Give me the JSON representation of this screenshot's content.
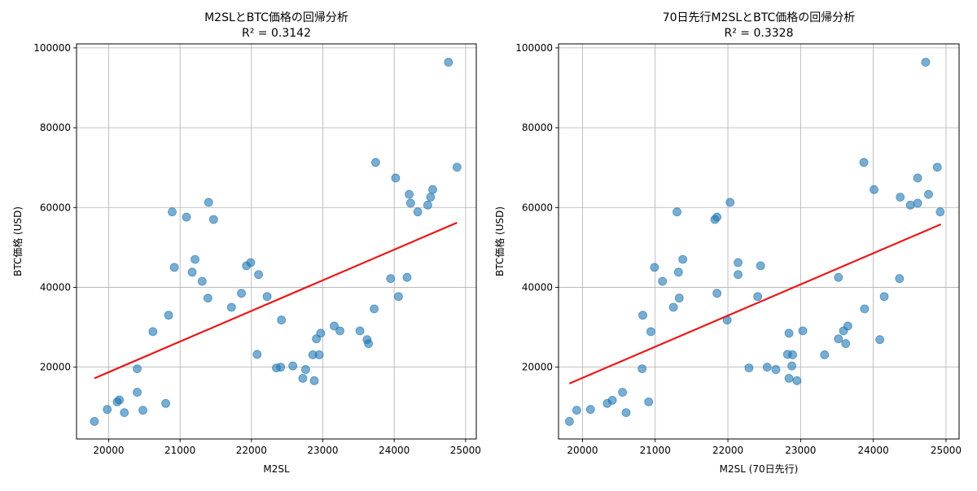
{
  "chart_data": [
    {
      "type": "scatter",
      "title": "M2SLとBTC価格の回帰分析",
      "subtitle": "R² = 0.3142",
      "xlabel": "M2SL",
      "ylabel": "BTC価格 (USD)",
      "xlim": [
        19550,
        25150
      ],
      "ylim": [
        2000,
        101000
      ],
      "xticks": [
        20000,
        21000,
        22000,
        23000,
        24000,
        25000
      ],
      "yticks": [
        20000,
        40000,
        60000,
        80000,
        100000
      ],
      "grid": true,
      "point_color": "#1f77b4",
      "line_color": "#e8191a",
      "regression": {
        "x": [
          19800,
          24880
        ],
        "y": [
          17200,
          56200
        ]
      },
      "points": [
        {
          "x": 19800,
          "y": 6400
        },
        {
          "x": 19980,
          "y": 9400
        },
        {
          "x": 20120,
          "y": 11300
        },
        {
          "x": 20150,
          "y": 11800
        },
        {
          "x": 20220,
          "y": 8600
        },
        {
          "x": 20400,
          "y": 13700
        },
        {
          "x": 20400,
          "y": 19600
        },
        {
          "x": 20480,
          "y": 9200
        },
        {
          "x": 20620,
          "y": 28900
        },
        {
          "x": 20800,
          "y": 10900
        },
        {
          "x": 20840,
          "y": 33000
        },
        {
          "x": 20890,
          "y": 58900
        },
        {
          "x": 20920,
          "y": 45000
        },
        {
          "x": 21090,
          "y": 57600
        },
        {
          "x": 21170,
          "y": 43800
        },
        {
          "x": 21210,
          "y": 47000
        },
        {
          "x": 21310,
          "y": 41500
        },
        {
          "x": 21390,
          "y": 37300
        },
        {
          "x": 21400,
          "y": 61300
        },
        {
          "x": 21470,
          "y": 57000
        },
        {
          "x": 21720,
          "y": 35000
        },
        {
          "x": 21860,
          "y": 38500
        },
        {
          "x": 21930,
          "y": 45400
        },
        {
          "x": 21990,
          "y": 46200
        },
        {
          "x": 22080,
          "y": 23200
        },
        {
          "x": 22100,
          "y": 43200
        },
        {
          "x": 22220,
          "y": 37700
        },
        {
          "x": 22350,
          "y": 19800
        },
        {
          "x": 22410,
          "y": 20000
        },
        {
          "x": 22420,
          "y": 31800
        },
        {
          "x": 22580,
          "y": 20300
        },
        {
          "x": 22720,
          "y": 17200
        },
        {
          "x": 22760,
          "y": 19400
        },
        {
          "x": 22860,
          "y": 23100
        },
        {
          "x": 22880,
          "y": 16600
        },
        {
          "x": 22910,
          "y": 27100
        },
        {
          "x": 22950,
          "y": 23100
        },
        {
          "x": 22970,
          "y": 28500
        },
        {
          "x": 23160,
          "y": 30300
        },
        {
          "x": 23240,
          "y": 29100
        },
        {
          "x": 23520,
          "y": 29100
        },
        {
          "x": 23620,
          "y": 26900
        },
        {
          "x": 23640,
          "y": 25900
        },
        {
          "x": 23720,
          "y": 34600
        },
        {
          "x": 23740,
          "y": 71300
        },
        {
          "x": 23950,
          "y": 42200
        },
        {
          "x": 24020,
          "y": 67400
        },
        {
          "x": 24060,
          "y": 37700
        },
        {
          "x": 24180,
          "y": 42500
        },
        {
          "x": 24210,
          "y": 63300
        },
        {
          "x": 24230,
          "y": 61100
        },
        {
          "x": 24330,
          "y": 58900
        },
        {
          "x": 24470,
          "y": 60600
        },
        {
          "x": 24510,
          "y": 62600
        },
        {
          "x": 24540,
          "y": 64500
        },
        {
          "x": 24760,
          "y": 96400
        },
        {
          "x": 24880,
          "y": 70100
        }
      ]
    },
    {
      "type": "scatter",
      "title": "70日先行M2SLとBTC価格の回帰分析",
      "subtitle": "R² = 0.3328",
      "xlabel": "M2SL (70日先行)",
      "ylabel": "BTC価格 (USD)",
      "xlim": [
        19670,
        25180
      ],
      "ylim": [
        2000,
        101000
      ],
      "xticks": [
        20000,
        21000,
        22000,
        23000,
        24000,
        25000
      ],
      "yticks": [
        20000,
        40000,
        60000,
        80000,
        100000
      ],
      "grid": true,
      "point_color": "#1f77b4",
      "line_color": "#e8191a",
      "regression": {
        "x": [
          19820,
          24930
        ],
        "y": [
          15900,
          55800
        ]
      },
      "points": [
        {
          "x": 19820,
          "y": 6400
        },
        {
          "x": 19920,
          "y": 9200
        },
        {
          "x": 20110,
          "y": 9400
        },
        {
          "x": 20340,
          "y": 10900
        },
        {
          "x": 20410,
          "y": 11700
        },
        {
          "x": 20550,
          "y": 13700
        },
        {
          "x": 20600,
          "y": 8600
        },
        {
          "x": 20820,
          "y": 19600
        },
        {
          "x": 20830,
          "y": 33000
        },
        {
          "x": 20910,
          "y": 11300
        },
        {
          "x": 20940,
          "y": 28900
        },
        {
          "x": 20990,
          "y": 45000
        },
        {
          "x": 21100,
          "y": 41500
        },
        {
          "x": 21250,
          "y": 35000
        },
        {
          "x": 21300,
          "y": 58900
        },
        {
          "x": 21320,
          "y": 43800
        },
        {
          "x": 21330,
          "y": 37300
        },
        {
          "x": 21380,
          "y": 47000
        },
        {
          "x": 21820,
          "y": 57000
        },
        {
          "x": 21850,
          "y": 57600
        },
        {
          "x": 21850,
          "y": 38500
        },
        {
          "x": 21990,
          "y": 31800
        },
        {
          "x": 22030,
          "y": 61300
        },
        {
          "x": 22140,
          "y": 46200
        },
        {
          "x": 22140,
          "y": 43200
        },
        {
          "x": 22290,
          "y": 19800
        },
        {
          "x": 22410,
          "y": 37700
        },
        {
          "x": 22450,
          "y": 45400
        },
        {
          "x": 22540,
          "y": 20000
        },
        {
          "x": 22660,
          "y": 19400
        },
        {
          "x": 22820,
          "y": 23200
        },
        {
          "x": 22840,
          "y": 28500
        },
        {
          "x": 22840,
          "y": 17200
        },
        {
          "x": 22880,
          "y": 20300
        },
        {
          "x": 22890,
          "y": 23100
        },
        {
          "x": 22950,
          "y": 16600
        },
        {
          "x": 23030,
          "y": 29100
        },
        {
          "x": 23330,
          "y": 23100
        },
        {
          "x": 23520,
          "y": 42500
        },
        {
          "x": 23520,
          "y": 27100
        },
        {
          "x": 23590,
          "y": 29100
        },
        {
          "x": 23620,
          "y": 25900
        },
        {
          "x": 23650,
          "y": 30300
        },
        {
          "x": 23870,
          "y": 71300
        },
        {
          "x": 23880,
          "y": 34600
        },
        {
          "x": 24010,
          "y": 64500
        },
        {
          "x": 24090,
          "y": 26900
        },
        {
          "x": 24150,
          "y": 37700
        },
        {
          "x": 24360,
          "y": 42200
        },
        {
          "x": 24370,
          "y": 62600
        },
        {
          "x": 24510,
          "y": 60600
        },
        {
          "x": 24610,
          "y": 67400
        },
        {
          "x": 24610,
          "y": 61100
        },
        {
          "x": 24720,
          "y": 96400
        },
        {
          "x": 24760,
          "y": 63300
        },
        {
          "x": 24880,
          "y": 70100
        },
        {
          "x": 24920,
          "y": 58900
        }
      ]
    }
  ]
}
